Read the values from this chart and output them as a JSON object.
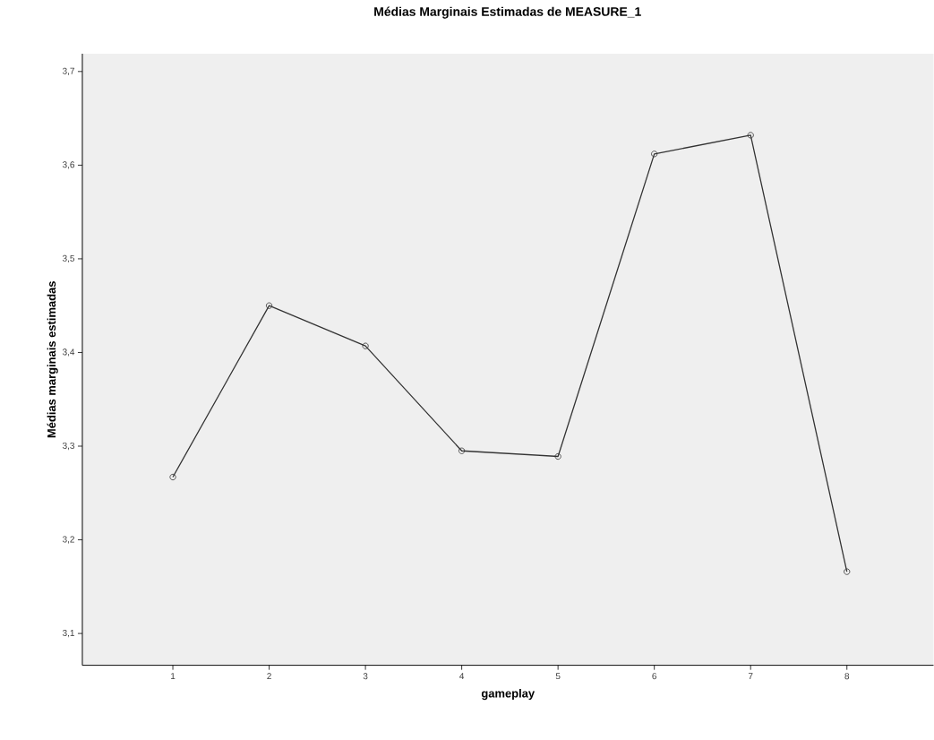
{
  "chart_data": {
    "type": "line",
    "title": "Médias Marginais Estimadas de MEASURE_1",
    "xlabel": "gameplay",
    "ylabel": "Médias marginais estimadas",
    "categories": [
      "1",
      "2",
      "3",
      "4",
      "5",
      "6",
      "7",
      "8"
    ],
    "series": [
      {
        "color": "#333333",
        "values": [
          3.267,
          3.45,
          3.407,
          3.295,
          3.289,
          3.612,
          3.632,
          3.166
        ]
      }
    ],
    "ylim": [
      3.066,
      3.719
    ],
    "yticks": [
      {
        "value": 3.1,
        "label": "3,1"
      },
      {
        "value": 3.2,
        "label": "3,2"
      },
      {
        "value": 3.3,
        "label": "3,3"
      },
      {
        "value": 3.4,
        "label": "3,4"
      },
      {
        "value": 3.5,
        "label": "3,5"
      },
      {
        "value": 3.6,
        "label": "3,6"
      },
      {
        "value": 3.7,
        "label": "3,7"
      }
    ],
    "marker": "circle",
    "line_style": "solid",
    "grid": false
  }
}
